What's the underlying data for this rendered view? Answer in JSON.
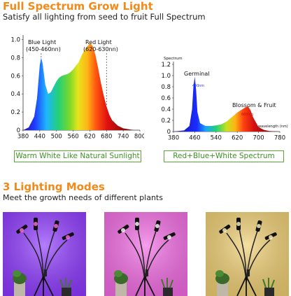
{
  "header": {
    "title": "Full Spectrum Grow Light",
    "subtitle": "Satisfy all lighting from seed to fruit Full Spectrum"
  },
  "chart_data": [
    {
      "type": "area",
      "title": "",
      "xlabel": "",
      "ylabel": "",
      "xlim": [
        380,
        800
      ],
      "ylim": [
        0,
        1.05
      ],
      "x_ticks": [
        "380",
        "440",
        "500",
        "560",
        "620",
        "680",
        "740",
        "800"
      ],
      "y_ticks": [
        "0",
        "0.2",
        "0.4",
        "0.6",
        "0.8",
        "1.0"
      ],
      "annotations": [
        {
          "text": "Blue Light",
          "sub": "(450-460nn)"
        },
        {
          "text": "Red Light",
          "sub": "(620-630nn)"
        }
      ],
      "x": [
        380,
        400,
        420,
        430,
        440,
        445,
        450,
        460,
        470,
        480,
        490,
        500,
        510,
        520,
        530,
        540,
        550,
        560,
        570,
        580,
        590,
        600,
        610,
        620,
        630,
        640,
        650,
        660,
        670,
        680,
        690,
        700,
        720,
        740,
        760,
        780,
        800
      ],
      "y": [
        0.0,
        0.03,
        0.15,
        0.35,
        0.72,
        0.8,
        0.74,
        0.5,
        0.4,
        0.42,
        0.48,
        0.54,
        0.58,
        0.6,
        0.61,
        0.62,
        0.64,
        0.67,
        0.71,
        0.75,
        0.82,
        0.88,
        0.92,
        0.96,
        0.93,
        0.83,
        0.68,
        0.52,
        0.38,
        0.26,
        0.17,
        0.11,
        0.05,
        0.02,
        0.01,
        0.0,
        0.0
      ],
      "caption": "Warm White Like Natural Sunlight"
    },
    {
      "type": "area",
      "title": "",
      "ylabel": "Spectrum",
      "xlabel": "wavelength (nm)",
      "xlim": [
        380,
        780
      ],
      "ylim": [
        0,
        1.25
      ],
      "x_ticks": [
        "380",
        "460",
        "540",
        "620",
        "700",
        "780"
      ],
      "y_ticks": [
        "0",
        "0.2",
        "0.4",
        "0.6",
        "0.8",
        "1.0",
        "1.2"
      ],
      "annotations": [
        {
          "text": "Germinal",
          "sub": "460nm"
        },
        {
          "text": "Blossom & Fruit",
          "sub": "660nm"
        }
      ],
      "x": [
        380,
        420,
        440,
        450,
        455,
        460,
        465,
        470,
        480,
        500,
        520,
        540,
        560,
        580,
        600,
        620,
        640,
        650,
        660,
        670,
        680,
        700,
        720,
        740,
        780
      ],
      "y": [
        0.0,
        0.02,
        0.1,
        0.4,
        0.8,
        0.98,
        0.75,
        0.35,
        0.15,
        0.1,
        0.1,
        0.11,
        0.13,
        0.18,
        0.26,
        0.34,
        0.4,
        0.43,
        0.45,
        0.38,
        0.25,
        0.08,
        0.03,
        0.01,
        0.0
      ],
      "caption": "Red+Blue+White Spectrum"
    }
  ],
  "modes": {
    "title": "3 Lighting Modes",
    "subtitle": "Meet the growth needs of different plants",
    "photos": [
      {
        "mode": "purple",
        "bg_color": "#8e38ff"
      },
      {
        "mode": "pink",
        "bg_color": "#f36ae4"
      },
      {
        "mode": "yellow",
        "bg_color": "#f0cf72"
      }
    ]
  }
}
